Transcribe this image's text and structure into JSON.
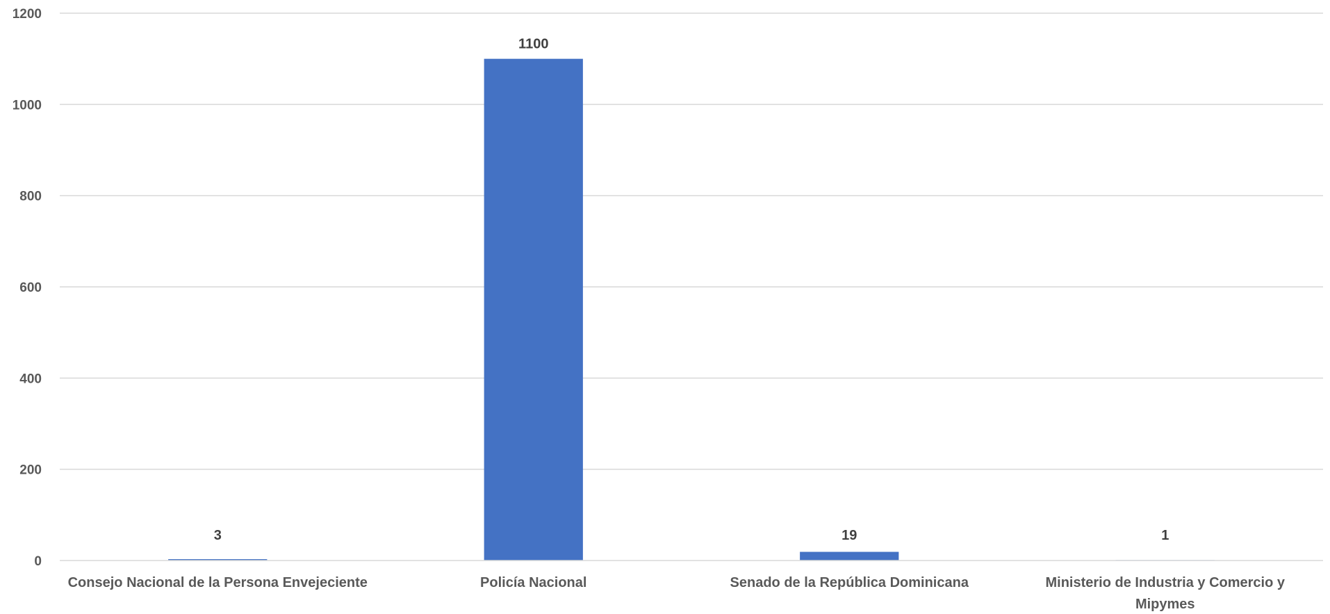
{
  "chart_data": {
    "type": "bar",
    "title": "",
    "xlabel": "",
    "ylabel": "",
    "categories": [
      [
        "Consejo Nacional de la Persona Envejeciente"
      ],
      [
        "Policía Nacional"
      ],
      [
        "Senado de la República Dominicana"
      ],
      [
        "Ministerio de Industria y Comercio y",
        "Mipymes"
      ]
    ],
    "values": [
      3,
      1100,
      19,
      1
    ],
    "ylim": [
      0,
      1200
    ],
    "yticks": [
      0,
      200,
      400,
      600,
      800,
      1000,
      1200
    ],
    "grid": true,
    "legend": "none",
    "data_labels": true,
    "bar_color": "#4472c4",
    "grid_color": "#d9d9d9",
    "label_color": "#595959",
    "data_label_color": "#404040"
  }
}
